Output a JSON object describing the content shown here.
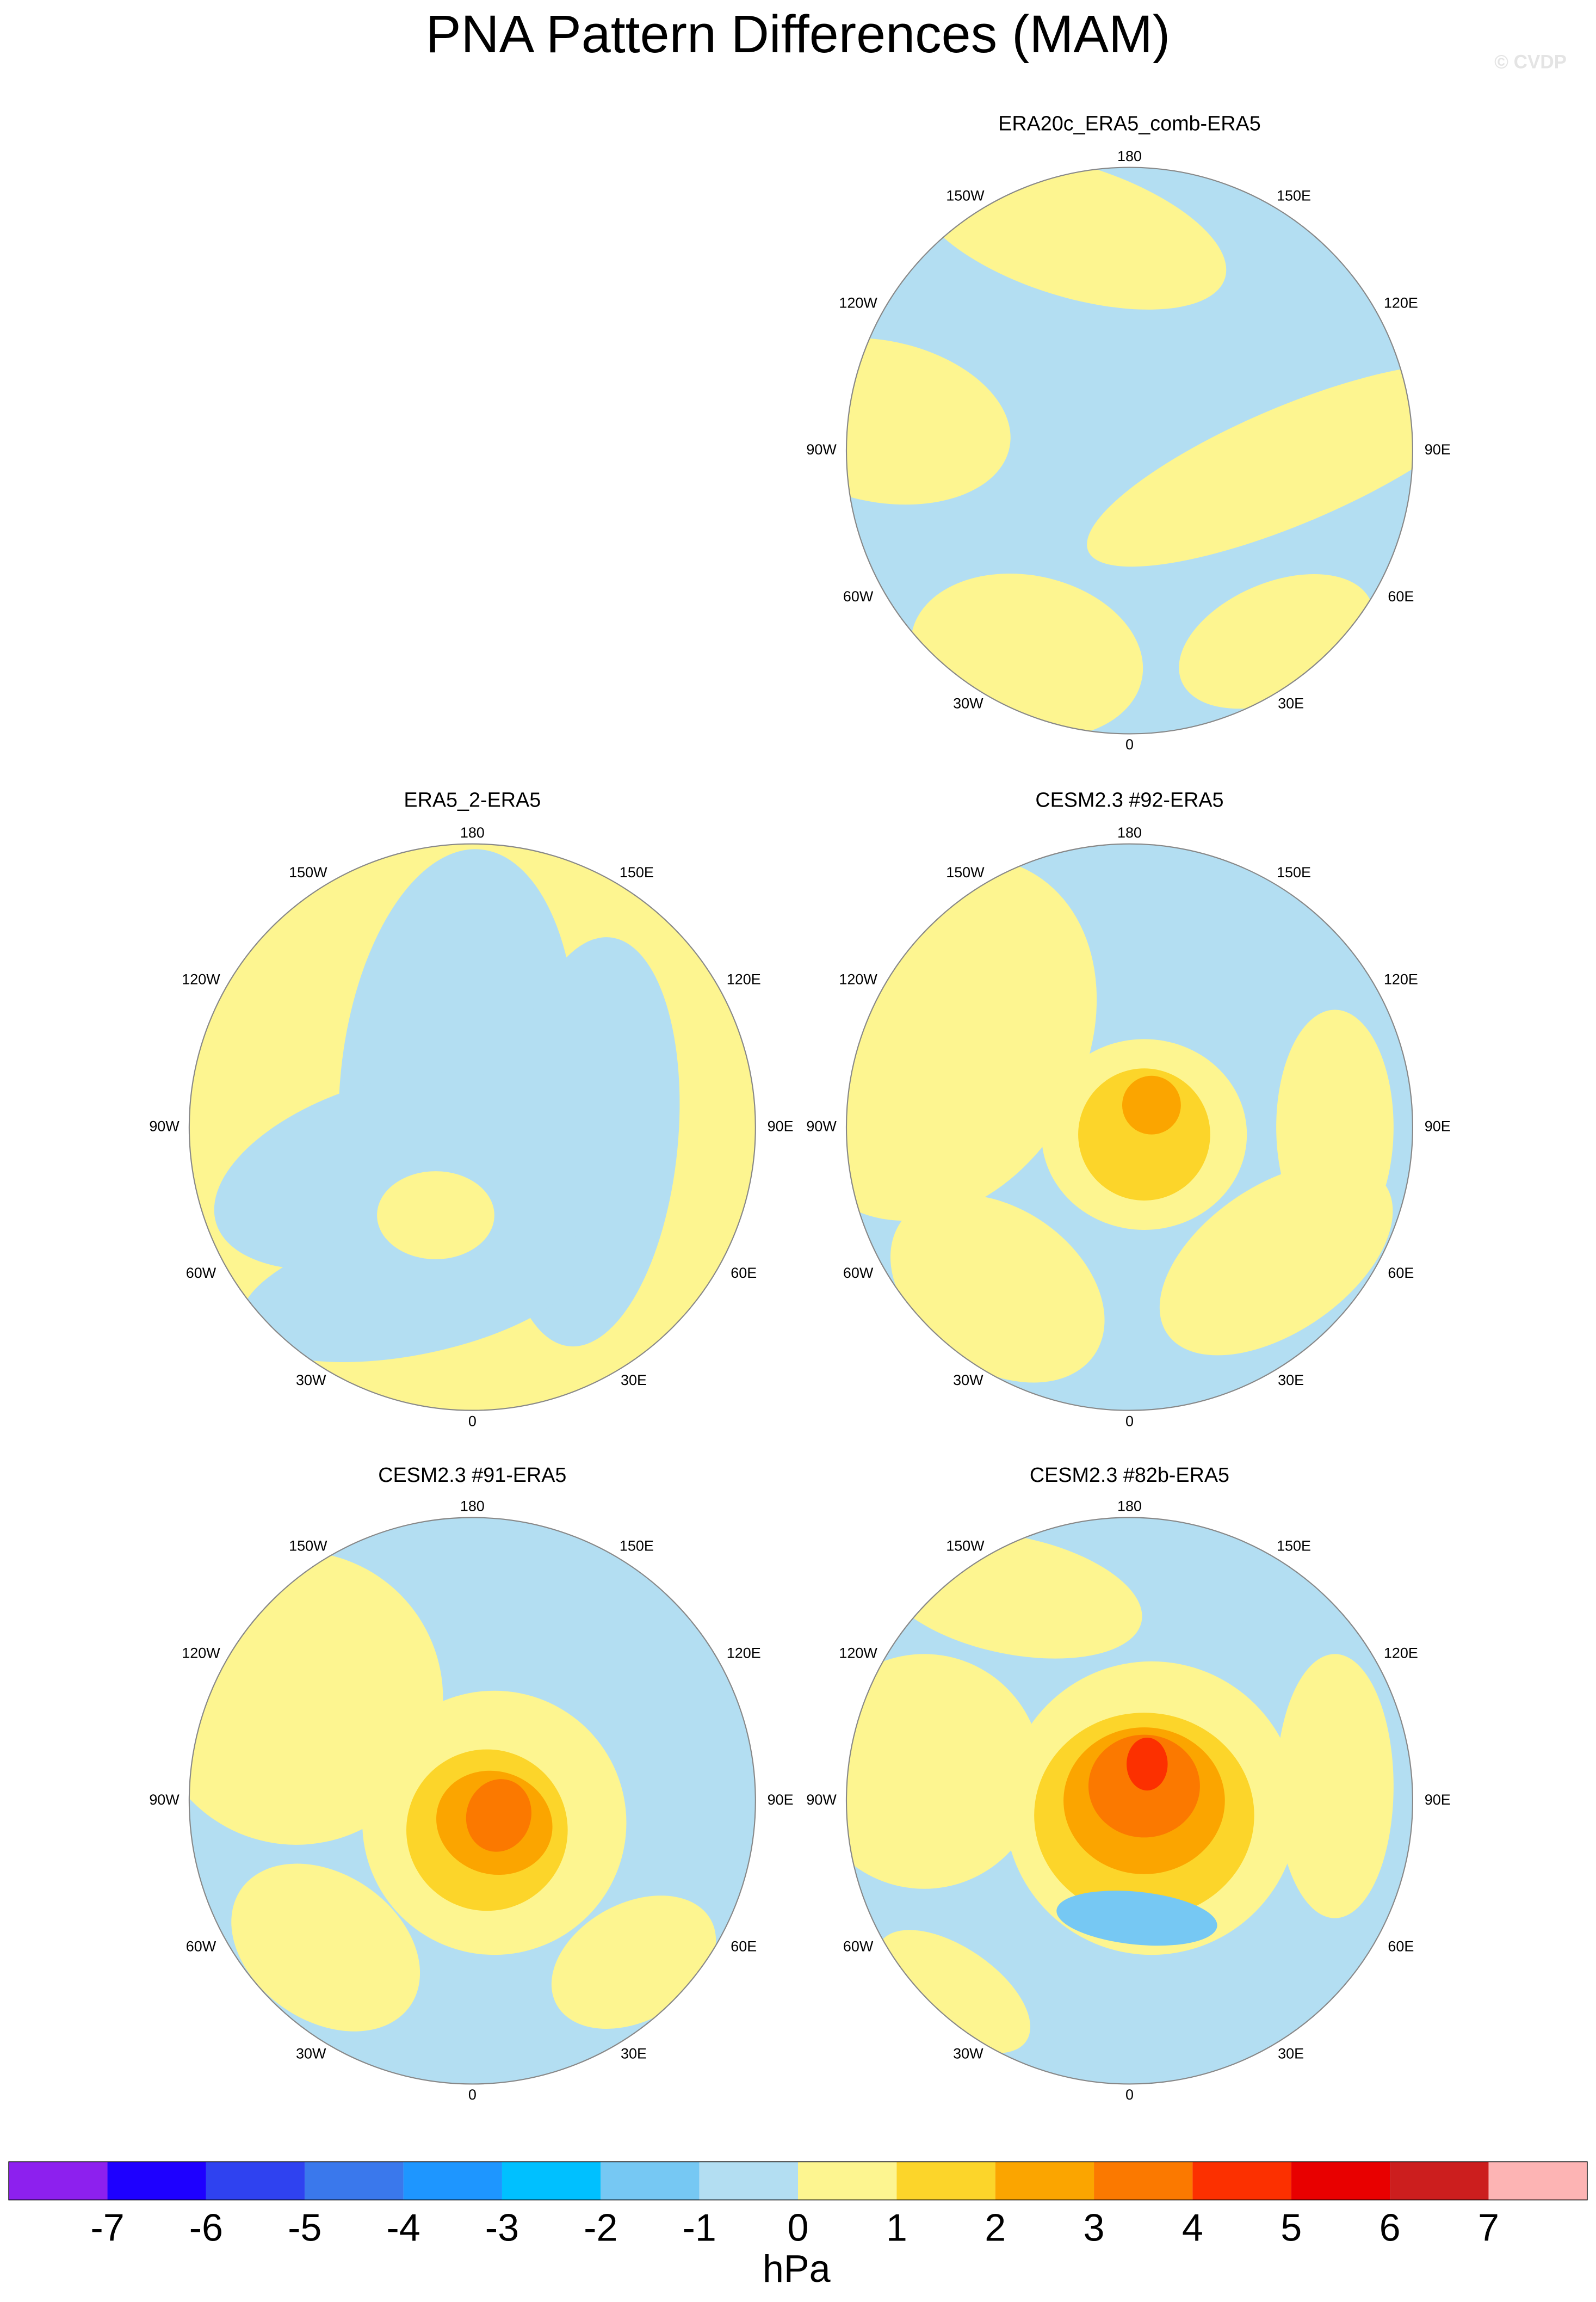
{
  "title": "PNA Pattern Differences (MAM)",
  "watermark": "© CVDP",
  "lon_labels": [
    "180",
    "150E",
    "120E",
    "90E",
    "60E",
    "30E",
    "0",
    "30W",
    "60W",
    "90W",
    "120W",
    "150W"
  ],
  "panels": [
    {
      "title": "ERA20c_ERA5_comb-ERA5"
    },
    {
      "title": "ERA5_2-ERA5"
    },
    {
      "title": "CESM2.3 #92-ERA5"
    },
    {
      "title": "CESM2.3 #91-ERA5"
    },
    {
      "title": "CESM2.3 #82b-ERA5"
    }
  ],
  "colorbar": {
    "colors": [
      "#8d20ee",
      "#1e00ff",
      "#2f42f0",
      "#3a78ec",
      "#1e96ff",
      "#00c0ff",
      "#76c8f3",
      "#b3def2",
      "#fdf590",
      "#fcd52a",
      "#fba500",
      "#fb7900",
      "#fc3000",
      "#e80000",
      "#cc1e1e",
      "#fdb4b4"
    ],
    "ticks": [
      -7,
      -6,
      -5,
      -4,
      -3,
      -2,
      -1,
      0,
      1,
      2,
      3,
      4,
      5,
      6,
      7
    ],
    "unit": "hPa"
  }
}
